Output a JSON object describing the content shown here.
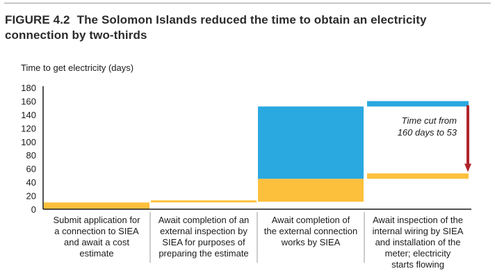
{
  "header": {
    "figure_label": "FIGURE 4.2",
    "title": "The Solomon Islands reduced the time to obtain an electricity connection by two-thirds"
  },
  "colors": {
    "before": "#2aa8e0",
    "after": "#fdc03d",
    "arrow": "#b0242b",
    "axis": "#1a1a1a"
  },
  "chart_data": {
    "type": "bar",
    "chart_kind": "waterfall",
    "ylabel": "Time to get electricity (days)",
    "ylim": [
      0,
      180
    ],
    "yticks": [
      0,
      20,
      40,
      60,
      80,
      100,
      120,
      140,
      160,
      180
    ],
    "categories": [
      "Submit application for a connection to SIEA and await a cost estimate",
      "Await completion of an external inspection by SIEA for purposes of preparing the estimate",
      "Await completion of the external connection works by SIEA",
      "Await inspection of the internal wiring by SIEA and installation of the meter; electricity starts flowing"
    ],
    "category_lines": [
      [
        "Submit application for",
        "a connection to SIEA",
        "and await a cost",
        "estimate"
      ],
      [
        "Await completion of an",
        "external inspection by",
        "SIEA for purposes of",
        "preparing the estimate"
      ],
      [
        "Await completion of",
        "the external connection",
        "works by SIEA"
      ],
      [
        "Await inspection of the",
        "internal wiring by SIEA",
        "and installation of the",
        "meter; electricity",
        "starts flowing"
      ]
    ],
    "series": [
      {
        "color_key": "after",
        "segments": [
          [
            0,
            10
          ],
          [
            10,
            11
          ],
          [
            11,
            45
          ],
          [
            45,
            53
          ]
        ]
      },
      {
        "color_key": "before",
        "segments": [
          [
            0,
            0
          ],
          [
            0,
            0
          ],
          [
            45,
            152
          ],
          [
            152,
            160
          ]
        ]
      }
    ],
    "annotation": {
      "lines": [
        "Time cut from",
        "160 days to 53"
      ],
      "arrow_from": 160,
      "arrow_to": 53
    }
  }
}
